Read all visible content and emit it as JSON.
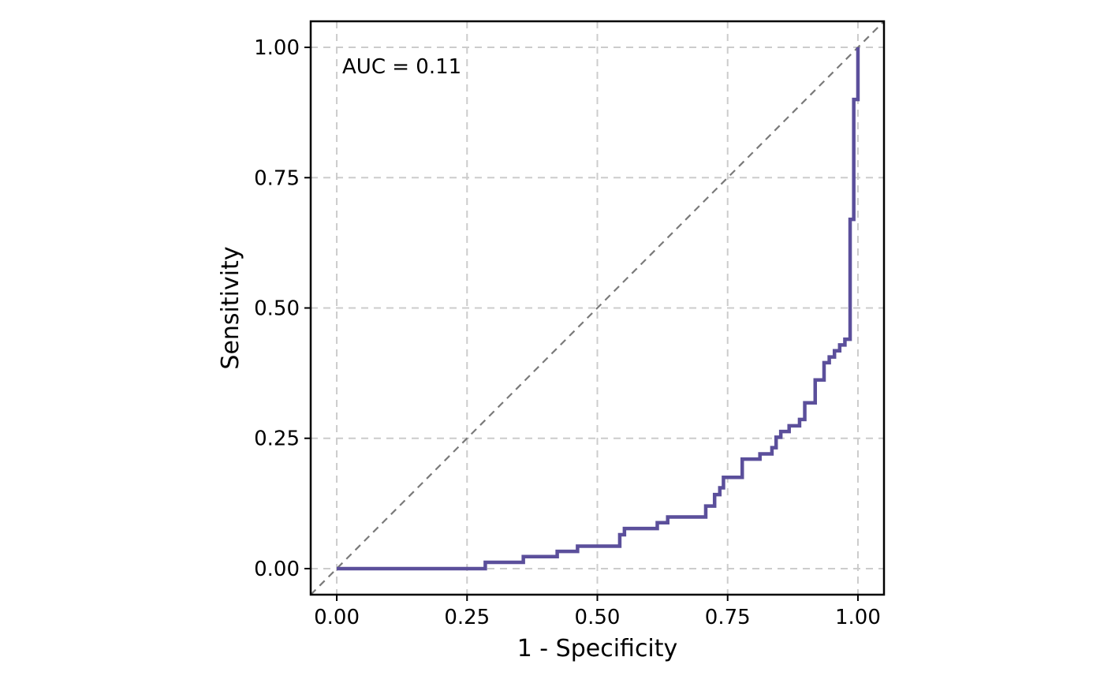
{
  "chart_data": {
    "type": "line",
    "xlabel": "1 - Specificity",
    "ylabel": "Sensitivity",
    "annotation": "AUC = 0.11",
    "xlim": [
      -0.05,
      1.05
    ],
    "ylim": [
      -0.05,
      1.05
    ],
    "x_ticks": [
      0,
      0.25,
      0.5,
      0.75,
      1
    ],
    "x_tick_labels": [
      "0.00",
      "0.25",
      "0.50",
      "0.75",
      "1.00"
    ],
    "y_ticks": [
      0,
      0.25,
      0.5,
      0.75,
      1
    ],
    "y_tick_labels": [
      "0.00",
      "0.25",
      "0.50",
      "0.75",
      "1.00"
    ],
    "grid": true,
    "legend": "none",
    "reference_line": {
      "x": [
        0,
        1
      ],
      "y": [
        0,
        1
      ],
      "style": "dashed",
      "color": "#7a7a7a"
    },
    "series": [
      {
        "color": "#5b4f9b",
        "step": true,
        "x": [
          0.0,
          0.285,
          0.358,
          0.423,
          0.462,
          0.543,
          0.552,
          0.615,
          0.635,
          0.708,
          0.725,
          0.735,
          0.742,
          0.778,
          0.812,
          0.835,
          0.843,
          0.852,
          0.868,
          0.888,
          0.898,
          0.918,
          0.935,
          0.945,
          0.955,
          0.965,
          0.975,
          0.985,
          0.992,
          1.0
        ],
        "y": [
          0.0,
          0.012,
          0.023,
          0.033,
          0.043,
          0.065,
          0.077,
          0.088,
          0.099,
          0.12,
          0.142,
          0.155,
          0.175,
          0.21,
          0.22,
          0.232,
          0.252,
          0.263,
          0.274,
          0.286,
          0.318,
          0.362,
          0.395,
          0.406,
          0.418,
          0.429,
          0.44,
          0.67,
          0.9,
          1.0
        ]
      }
    ]
  }
}
